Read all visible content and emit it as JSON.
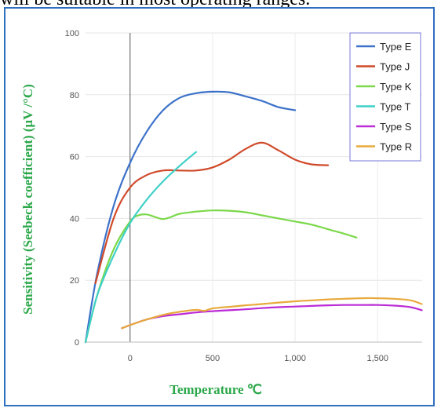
{
  "page": {
    "title": "will be suitable in most operating ranges."
  },
  "chart_data": {
    "type": "line",
    "title": "",
    "xlabel": "Temperature ℃",
    "ylabel": "Sensitivity (Seebeck coefficient) (μV /°C)",
    "xlim": [
      -270,
      1770
    ],
    "ylim": [
      0,
      100
    ],
    "x_ticks": [
      0,
      500,
      1000,
      1500
    ],
    "x_tick_labels": [
      "0",
      "500",
      "1,000",
      "1,500"
    ],
    "y_ticks": [
      0,
      20,
      40,
      60,
      80,
      100
    ],
    "y_tick_labels": [
      "0",
      "20",
      "40",
      "60",
      "80",
      "100"
    ],
    "grid": true,
    "legend_position": "top-right",
    "series": [
      {
        "name": "Type E",
        "color": "#3d72c9",
        "points": [
          [
            -270,
            0
          ],
          [
            -200,
            22
          ],
          [
            -100,
            44
          ],
          [
            0,
            58
          ],
          [
            100,
            68
          ],
          [
            200,
            75
          ],
          [
            300,
            79
          ],
          [
            400,
            80.5
          ],
          [
            500,
            81
          ],
          [
            600,
            80.8
          ],
          [
            700,
            79.5
          ],
          [
            800,
            78
          ],
          [
            900,
            76
          ],
          [
            1000,
            75
          ]
        ]
      },
      {
        "name": "Type J",
        "color": "#d04a2a",
        "points": [
          [
            -210,
            19
          ],
          [
            -100,
            40
          ],
          [
            0,
            50
          ],
          [
            100,
            54
          ],
          [
            200,
            55.5
          ],
          [
            300,
            55.5
          ],
          [
            400,
            55.5
          ],
          [
            500,
            56.5
          ],
          [
            600,
            59
          ],
          [
            700,
            62.5
          ],
          [
            800,
            64.5
          ],
          [
            900,
            62
          ],
          [
            1000,
            59
          ],
          [
            1100,
            57.5
          ],
          [
            1200,
            57.2
          ]
        ]
      },
      {
        "name": "Type K",
        "color": "#7bd84a",
        "points": [
          [
            -270,
            0
          ],
          [
            -200,
            15
          ],
          [
            -100,
            30
          ],
          [
            0,
            39
          ],
          [
            50,
            41
          ],
          [
            100,
            41.3
          ],
          [
            150,
            40.5
          ],
          [
            200,
            39.8
          ],
          [
            250,
            40.5
          ],
          [
            300,
            41.5
          ],
          [
            400,
            42.2
          ],
          [
            500,
            42.6
          ],
          [
            600,
            42.5
          ],
          [
            700,
            42
          ],
          [
            800,
            41
          ],
          [
            900,
            40
          ],
          [
            1000,
            39
          ],
          [
            1100,
            38
          ],
          [
            1200,
            36.5
          ],
          [
            1300,
            35
          ],
          [
            1372,
            33.8
          ]
        ]
      },
      {
        "name": "Type T",
        "color": "#3fd0c8",
        "points": [
          [
            -270,
            0
          ],
          [
            -200,
            15
          ],
          [
            -100,
            28
          ],
          [
            0,
            38.5
          ],
          [
            100,
            46
          ],
          [
            200,
            52
          ],
          [
            300,
            57
          ],
          [
            400,
            61.5
          ]
        ]
      },
      {
        "name": "Type S",
        "color": "#bb2bd6",
        "points": [
          [
            -50,
            4.5
          ],
          [
            0,
            5.5
          ],
          [
            100,
            7.3
          ],
          [
            200,
            8.4
          ],
          [
            300,
            9
          ],
          [
            400,
            9.6
          ],
          [
            500,
            10
          ],
          [
            600,
            10.3
          ],
          [
            700,
            10.6
          ],
          [
            800,
            11
          ],
          [
            900,
            11.3
          ],
          [
            1000,
            11.5
          ],
          [
            1100,
            11.7
          ],
          [
            1200,
            11.9
          ],
          [
            1300,
            12
          ],
          [
            1400,
            12
          ],
          [
            1500,
            12
          ],
          [
            1600,
            11.8
          ],
          [
            1700,
            11.3
          ],
          [
            1768,
            10.3
          ]
        ]
      },
      {
        "name": "Type R",
        "color": "#e8a93c",
        "points": [
          [
            -50,
            4.5
          ],
          [
            0,
            5.5
          ],
          [
            100,
            7.3
          ],
          [
            200,
            8.8
          ],
          [
            300,
            9.8
          ],
          [
            400,
            10.4
          ],
          [
            450,
            10.1
          ],
          [
            500,
            10.9
          ],
          [
            600,
            11.4
          ],
          [
            700,
            11.9
          ],
          [
            800,
            12.3
          ],
          [
            900,
            12.8
          ],
          [
            1000,
            13.2
          ],
          [
            1100,
            13.5
          ],
          [
            1200,
            13.8
          ],
          [
            1300,
            14
          ],
          [
            1400,
            14.2
          ],
          [
            1500,
            14.2
          ],
          [
            1600,
            14
          ],
          [
            1700,
            13.5
          ],
          [
            1768,
            12.3
          ]
        ]
      }
    ]
  }
}
